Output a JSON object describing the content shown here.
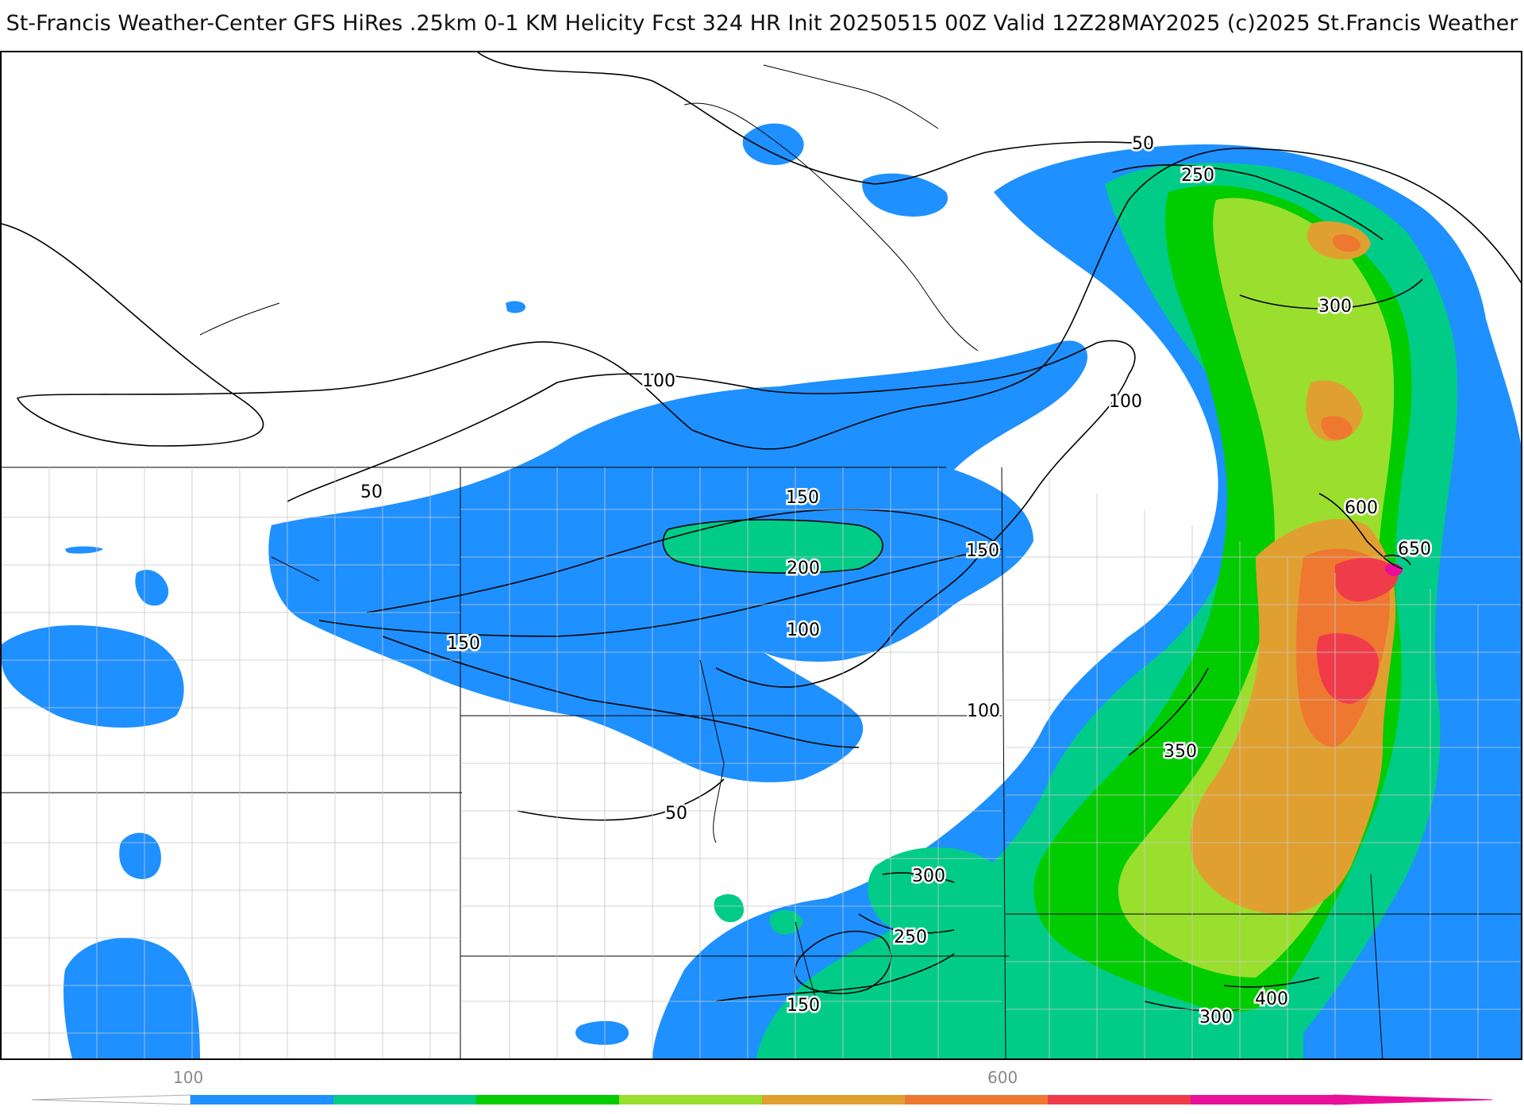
{
  "header": {
    "title": "St-Francis Weather-Center GFS HiRes .25km 0-1 KM Helicity Fcst 324 HR Init 20250515 00Z  Valid 12Z28MAY2025    (c)2025 St.Francis Weather"
  },
  "legend": {
    "tick_labels": [
      "100",
      "600"
    ],
    "colors": [
      "#1e90ff",
      "#00cc88",
      "#00cc00",
      "#9adf2e",
      "#e0a030",
      "#ee7830",
      "#f03c4a",
      "#e8109a"
    ]
  },
  "contour_labels": [
    {
      "id": "c50-top",
      "text": "50"
    },
    {
      "id": "c250-top",
      "text": "250"
    },
    {
      "id": "c300-ne",
      "text": "300"
    },
    {
      "id": "c100-n",
      "text": "100"
    },
    {
      "id": "c100-ne",
      "text": "100"
    },
    {
      "id": "c50-w",
      "text": "50"
    },
    {
      "id": "c150-mid",
      "text": "150"
    },
    {
      "id": "c600",
      "text": "600"
    },
    {
      "id": "c650",
      "text": "650"
    },
    {
      "id": "c200",
      "text": "200"
    },
    {
      "id": "c150-e",
      "text": "150"
    },
    {
      "id": "c150-w",
      "text": "150"
    },
    {
      "id": "c100-mid",
      "text": "100"
    },
    {
      "id": "c100-se",
      "text": "100"
    },
    {
      "id": "c350",
      "text": "350"
    },
    {
      "id": "c50-s",
      "text": "50"
    },
    {
      "id": "c300-s",
      "text": "300"
    },
    {
      "id": "c250-s",
      "text": "250"
    },
    {
      "id": "c150-s",
      "text": "150"
    },
    {
      "id": "c400",
      "text": "400"
    },
    {
      "id": "c300-se",
      "text": "300"
    }
  ]
}
